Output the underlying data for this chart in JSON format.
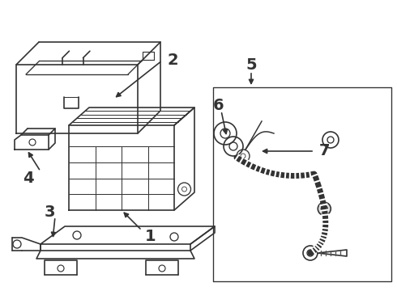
{
  "background_color": "#ffffff",
  "line_color": "#333333",
  "figsize": [
    4.9,
    3.6
  ],
  "dpi": 100,
  "label_fontsize": 12,
  "label_fontweight": "bold"
}
